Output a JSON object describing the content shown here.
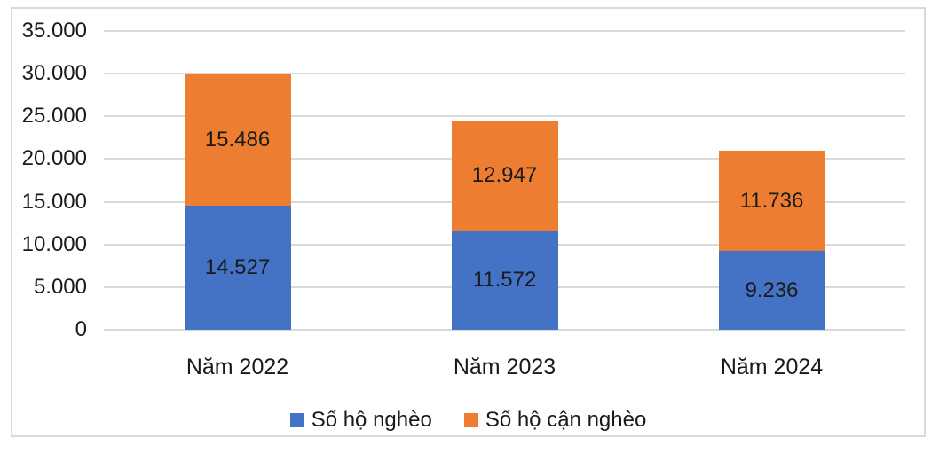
{
  "chart_data": {
    "type": "bar",
    "stacked": true,
    "categories": [
      "Năm 2022",
      "Năm 2023",
      "Năm 2024"
    ],
    "series": [
      {
        "name": "Số hộ nghèo",
        "color": "#4472C4",
        "values": [
          14527,
          11572,
          9236
        ],
        "labels": [
          "14.527",
          "11.572",
          "9.236"
        ]
      },
      {
        "name": "Số hộ cận nghèo",
        "color": "#ED7D31",
        "values": [
          15486,
          12947,
          11736
        ],
        "labels": [
          "15.486",
          "12.947",
          "11.736"
        ]
      }
    ],
    "y_axis": {
      "min": 0,
      "max": 35000,
      "step": 5000,
      "tick_values": [
        0,
        5000,
        10000,
        15000,
        20000,
        25000,
        30000,
        35000
      ],
      "tick_labels": [
        "0",
        "5.000",
        "10.000",
        "15.000",
        "20.000",
        "25.000",
        "30.000",
        "35.000"
      ]
    },
    "grid": true,
    "legend_position": "bottom"
  },
  "colors": {
    "series_1": "#4472C4",
    "series_2": "#ED7D31",
    "gridline": "#D9D9D9",
    "chart_border": "#D9D9D9",
    "text": "#1A1A1A",
    "background": "#FFFFFF"
  }
}
